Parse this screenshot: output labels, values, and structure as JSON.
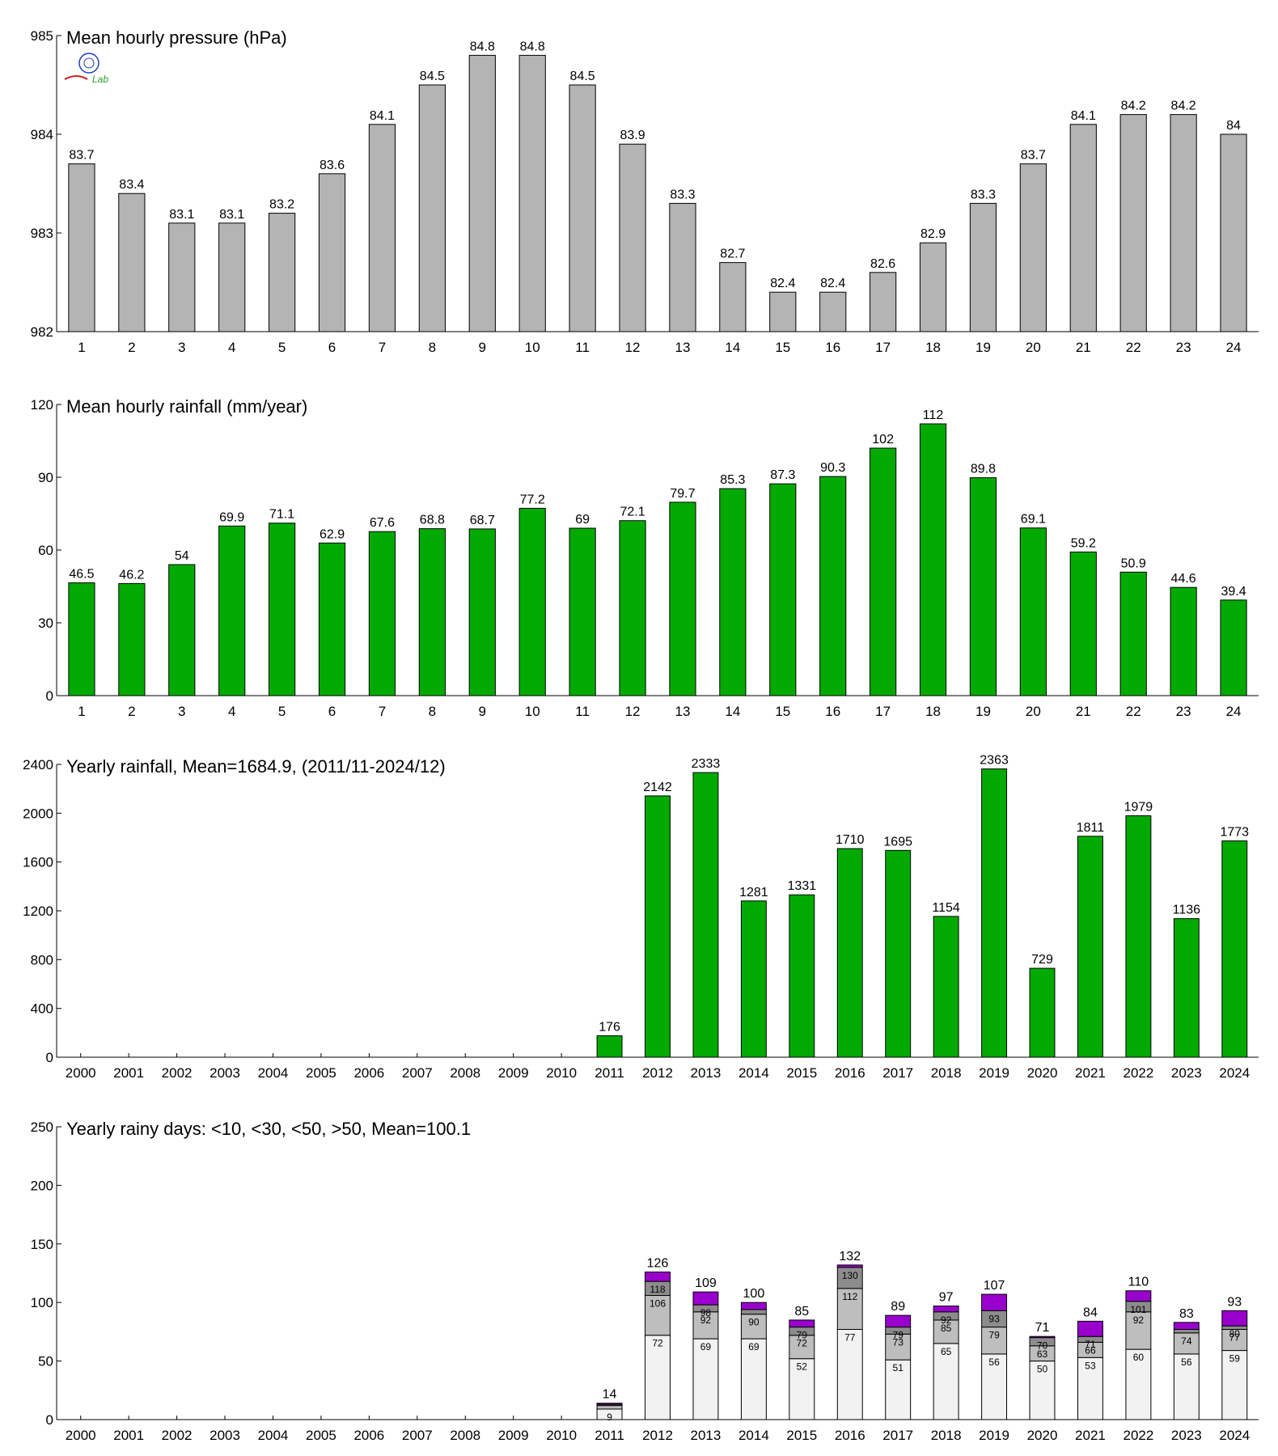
{
  "logo": {
    "text": "Lab",
    "colors": {
      "blue": "#1f3fbf",
      "green": "#2e9e2e",
      "red": "#cc2222"
    }
  },
  "chart_data": [
    {
      "type": "bar",
      "title": "Mean hourly pressure (hPa)",
      "categories": [
        "1",
        "2",
        "3",
        "4",
        "5",
        "6",
        "7",
        "8",
        "9",
        "10",
        "11",
        "12",
        "13",
        "14",
        "15",
        "16",
        "17",
        "18",
        "19",
        "20",
        "21",
        "22",
        "23",
        "24"
      ],
      "values": [
        983.7,
        983.4,
        983.1,
        983.1,
        983.2,
        983.6,
        984.1,
        984.5,
        984.8,
        984.8,
        984.5,
        983.9,
        983.3,
        982.7,
        982.4,
        982.4,
        982.6,
        982.9,
        983.3,
        983.7,
        984.1,
        984.2,
        984.2,
        984.0
      ],
      "data_labels": [
        "83.7",
        "83.4",
        "83.1",
        "83.1",
        "83.2",
        "83.6",
        "84.1",
        "84.5",
        "84.8",
        "84.8",
        "84.5",
        "83.9",
        "83.3",
        "82.7",
        "82.4",
        "82.4",
        "82.6",
        "82.9",
        "83.3",
        "83.7",
        "84.1",
        "84.2",
        "84.2",
        "84"
      ],
      "ylim": [
        982,
        985
      ],
      "yticks": [
        982,
        983,
        984,
        985
      ],
      "color": "#b4b4b4",
      "grid": false
    },
    {
      "type": "bar",
      "title": "Mean hourly rainfall (mm/year)",
      "categories": [
        "1",
        "2",
        "3",
        "4",
        "5",
        "6",
        "7",
        "8",
        "9",
        "10",
        "11",
        "12",
        "13",
        "14",
        "15",
        "16",
        "17",
        "18",
        "19",
        "20",
        "21",
        "22",
        "23",
        "24"
      ],
      "values": [
        46.5,
        46.2,
        54,
        69.9,
        71.1,
        62.9,
        67.6,
        68.8,
        68.7,
        77.2,
        69,
        72.1,
        79.7,
        85.3,
        87.3,
        90.3,
        102,
        112,
        89.8,
        69.1,
        59.2,
        50.9,
        44.6,
        39.4
      ],
      "data_labels": [
        "46.5",
        "46.2",
        "54",
        "69.9",
        "71.1",
        "62.9",
        "67.6",
        "68.8",
        "68.7",
        "77.2",
        "69",
        "72.1",
        "79.7",
        "85.3",
        "87.3",
        "90.3",
        "102",
        "112",
        "89.8",
        "69.1",
        "59.2",
        "50.9",
        "44.6",
        "39.4"
      ],
      "ylim": [
        0,
        120
      ],
      "yticks": [
        0,
        30,
        60,
        90,
        120
      ],
      "color": "#00aa00",
      "grid": false
    },
    {
      "type": "bar",
      "title": "Yearly rainfall, Mean=1684.9, (2011/11-2024/12)",
      "categories": [
        "2000",
        "2001",
        "2002",
        "2003",
        "2004",
        "2005",
        "2006",
        "2007",
        "2008",
        "2009",
        "2010",
        "2011",
        "2012",
        "2013",
        "2014",
        "2015",
        "2016",
        "2017",
        "2018",
        "2019",
        "2020",
        "2021",
        "2022",
        "2023",
        "2024"
      ],
      "values": [
        null,
        null,
        null,
        null,
        null,
        null,
        null,
        null,
        null,
        null,
        null,
        176,
        2142,
        2333,
        1281,
        1331,
        1710,
        1695,
        1154,
        2363,
        729,
        1811,
        1979,
        1136,
        1773
      ],
      "data_labels": [
        "",
        "",
        "",
        "",
        "",
        "",
        "",
        "",
        "",
        "",
        "",
        "176",
        "2142",
        "2333",
        "1281",
        "1331",
        "1710",
        "1695",
        "1154",
        "2363",
        "729",
        "1811",
        "1979",
        "1136",
        "1773"
      ],
      "ylim": [
        0,
        2400
      ],
      "yticks": [
        0,
        400,
        800,
        1200,
        1600,
        2000,
        2400
      ],
      "color": "#00aa00",
      "grid": false
    },
    {
      "type": "bar",
      "subtype": "stacked",
      "title": "Yearly rainy days: <10, <30, <50, >50, Mean=100.1",
      "categories": [
        "2000",
        "2001",
        "2002",
        "2003",
        "2004",
        "2005",
        "2006",
        "2007",
        "2008",
        "2009",
        "2010",
        "2011",
        "2012",
        "2013",
        "2014",
        "2015",
        "2016",
        "2017",
        "2018",
        "2019",
        "2020",
        "2021",
        "2022",
        "2023",
        "2024"
      ],
      "cumulative": {
        "lt10": [
          null,
          null,
          null,
          null,
          null,
          null,
          null,
          null,
          null,
          null,
          null,
          9,
          72,
          69,
          69,
          52,
          77,
          51,
          65,
          56,
          50,
          53,
          60,
          56,
          59
        ],
        "lt30": [
          null,
          null,
          null,
          null,
          null,
          null,
          null,
          null,
          null,
          null,
          null,
          12,
          106,
          92,
          90,
          72,
          112,
          73,
          85,
          79,
          63,
          66,
          92,
          74,
          77
        ],
        "lt50": [
          null,
          null,
          null,
          null,
          null,
          null,
          null,
          null,
          null,
          null,
          null,
          13,
          118,
          98,
          94,
          79,
          130,
          79,
          92,
          93,
          70,
          71,
          101,
          77,
          80
        ],
        "total": [
          null,
          null,
          null,
          null,
          null,
          null,
          null,
          null,
          null,
          null,
          null,
          14,
          126,
          109,
          100,
          85,
          132,
          89,
          97,
          107,
          71,
          84,
          110,
          83,
          93
        ]
      },
      "segment_labels": {
        "lt10": [
          "",
          "",
          "",
          "",
          "",
          "",
          "",
          "",
          "",
          "",
          "",
          "9",
          "72",
          "69",
          "69",
          "52",
          "77",
          "51",
          "65",
          "56",
          "50",
          "53",
          "60",
          "56",
          "59"
        ],
        "lt30": [
          "",
          "",
          "",
          "",
          "",
          "",
          "",
          "",
          "",
          "",
          "",
          "",
          "106",
          "92",
          "90",
          "72",
          "112",
          "73",
          "85",
          "79",
          "63",
          "66",
          "92",
          "74",
          "77"
        ],
        "lt50": [
          "",
          "",
          "",
          "",
          "",
          "",
          "",
          "",
          "",
          "",
          "",
          "",
          "118",
          "98",
          "",
          "79",
          "130",
          "79",
          "92",
          "93",
          "70",
          "71",
          "101",
          "",
          "80"
        ],
        "total": [
          "",
          "",
          "",
          "",
          "",
          "",
          "",
          "",
          "",
          "",
          "",
          "14",
          "126",
          "109",
          "100",
          "85",
          "132",
          "89",
          "97",
          "107",
          "71",
          "84",
          "110",
          "83",
          "93"
        ]
      },
      "ylim": [
        0,
        250
      ],
      "yticks": [
        0,
        50,
        100,
        150,
        200,
        250
      ],
      "colors": {
        "lt10": "#f2f2f2",
        "lt30": "#bebebe",
        "lt50": "#8c8c8c",
        "gt50": "#9900cc"
      },
      "grid": false
    }
  ]
}
